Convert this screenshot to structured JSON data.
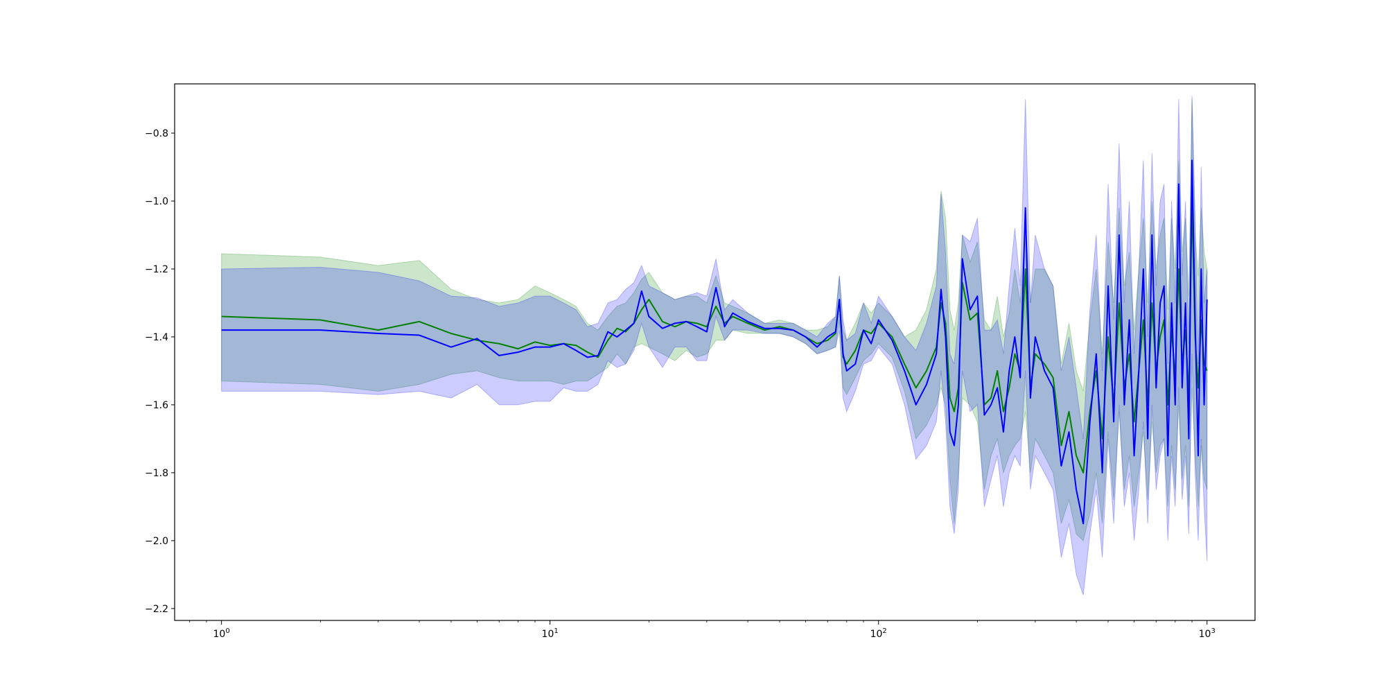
{
  "chart_data": {
    "type": "line",
    "title": "",
    "xlabel": "",
    "ylabel": "",
    "xscale": "log",
    "xlim": [
      0.72,
      1400
    ],
    "ylim": [
      -2.235,
      -0.655
    ],
    "grid": false,
    "legend": "none",
    "x_tick_labels": [
      {
        "base": "10",
        "exp": "0",
        "value": 1
      },
      {
        "base": "10",
        "exp": "1",
        "value": 10
      },
      {
        "base": "10",
        "exp": "2",
        "value": 100
      },
      {
        "base": "10",
        "exp": "3",
        "value": 1000
      }
    ],
    "y_ticks": [
      -0.8,
      -1.0,
      -1.2,
      -1.4,
      -1.6,
      -1.8,
      -2.0,
      -2.2
    ],
    "y_tick_labels": [
      "−0.8",
      "−1.0",
      "−1.2",
      "−1.4",
      "−1.6",
      "−1.8",
      "−2.0",
      "−2.2"
    ],
    "x": [
      1,
      2,
      3,
      4,
      5,
      6,
      7,
      8,
      9,
      10,
      11,
      12,
      13,
      14,
      15,
      16,
      17,
      18,
      19,
      20,
      22,
      24,
      26,
      28,
      30,
      32,
      34,
      36,
      40,
      45,
      50,
      55,
      60,
      65,
      70,
      74,
      76,
      78,
      80,
      85,
      90,
      95,
      100,
      110,
      120,
      130,
      140,
      150,
      155,
      160,
      165,
      170,
      175,
      180,
      190,
      200,
      210,
      220,
      230,
      240,
      250,
      260,
      270,
      280,
      290,
      300,
      320,
      340,
      360,
      380,
      400,
      420,
      440,
      460,
      480,
      500,
      520,
      540,
      560,
      580,
      600,
      620,
      640,
      660,
      680,
      700,
      720,
      740,
      760,
      780,
      800,
      820,
      840,
      860,
      880,
      900,
      920,
      940,
      960,
      980,
      1000
    ],
    "series": [
      {
        "color": "#008000",
        "band_color": "#008000",
        "values": [
          -1.34,
          -1.35,
          -1.38,
          -1.355,
          -1.39,
          -1.41,
          -1.42,
          -1.435,
          -1.415,
          -1.425,
          -1.42,
          -1.425,
          -1.445,
          -1.46,
          -1.41,
          -1.375,
          -1.385,
          -1.36,
          -1.32,
          -1.29,
          -1.355,
          -1.37,
          -1.355,
          -1.36,
          -1.37,
          -1.31,
          -1.36,
          -1.34,
          -1.36,
          -1.38,
          -1.37,
          -1.38,
          -1.4,
          -1.42,
          -1.41,
          -1.39,
          -1.29,
          -1.46,
          -1.48,
          -1.44,
          -1.38,
          -1.39,
          -1.36,
          -1.4,
          -1.48,
          -1.55,
          -1.5,
          -1.43,
          -1.3,
          -1.36,
          -1.58,
          -1.62,
          -1.55,
          -1.24,
          -1.35,
          -1.33,
          -1.6,
          -1.58,
          -1.5,
          -1.62,
          -1.55,
          -1.45,
          -1.5,
          -1.2,
          -1.55,
          -1.45,
          -1.48,
          -1.52,
          -1.72,
          -1.62,
          -1.75,
          -1.8,
          -1.62,
          -1.5,
          -1.7,
          -1.4,
          -1.6,
          -1.3,
          -1.55,
          -1.45,
          -1.65,
          -1.5,
          -1.35,
          -1.6,
          -1.3,
          -1.5,
          -1.4,
          -1.35,
          -1.6,
          -1.38,
          -1.52,
          -1.2,
          -1.48,
          -1.38,
          -1.58,
          -1.0,
          -1.4,
          -1.55,
          -1.35,
          -1.48,
          -1.5
        ],
        "lower": [
          -1.53,
          -1.54,
          -1.56,
          -1.54,
          -1.51,
          -1.5,
          -1.52,
          -1.53,
          -1.53,
          -1.53,
          -1.54,
          -1.53,
          -1.53,
          -1.51,
          -1.49,
          -1.45,
          -1.48,
          -1.43,
          -1.42,
          -1.43,
          -1.45,
          -1.47,
          -1.44,
          -1.46,
          -1.45,
          -1.41,
          -1.41,
          -1.38,
          -1.39,
          -1.39,
          -1.39,
          -1.4,
          -1.42,
          -1.45,
          -1.44,
          -1.43,
          -1.35,
          -1.55,
          -1.57,
          -1.52,
          -1.47,
          -1.45,
          -1.42,
          -1.46,
          -1.56,
          -1.7,
          -1.66,
          -1.6,
          -1.55,
          -1.6,
          -1.82,
          -1.95,
          -1.8,
          -1.58,
          -1.6,
          -1.65,
          -1.85,
          -1.75,
          -1.7,
          -1.8,
          -1.75,
          -1.72,
          -1.7,
          -1.62,
          -1.8,
          -1.7,
          -1.75,
          -1.8,
          -1.95,
          -1.88,
          -1.98,
          -2.0,
          -1.92,
          -1.8,
          -1.95,
          -1.68,
          -1.88,
          -1.62,
          -1.85,
          -1.75,
          -1.9,
          -1.8,
          -1.68,
          -1.88,
          -1.65,
          -1.8,
          -1.72,
          -1.7,
          -1.9,
          -1.72,
          -1.85,
          -1.6,
          -1.82,
          -1.72,
          -1.9,
          -1.55,
          -1.75,
          -1.9,
          -1.72,
          -1.82,
          -1.85
        ],
        "upper": [
          -1.155,
          -1.165,
          -1.19,
          -1.175,
          -1.26,
          -1.29,
          -1.3,
          -1.29,
          -1.25,
          -1.27,
          -1.29,
          -1.31,
          -1.36,
          -1.38,
          -1.34,
          -1.31,
          -1.3,
          -1.27,
          -1.23,
          -1.21,
          -1.27,
          -1.29,
          -1.28,
          -1.28,
          -1.3,
          -1.22,
          -1.3,
          -1.31,
          -1.33,
          -1.36,
          -1.35,
          -1.36,
          -1.38,
          -1.38,
          -1.37,
          -1.34,
          -1.22,
          -1.38,
          -1.41,
          -1.36,
          -1.3,
          -1.33,
          -1.3,
          -1.34,
          -1.4,
          -1.38,
          -1.32,
          -1.2,
          -0.97,
          -1.05,
          -1.32,
          -1.38,
          -1.3,
          -1.1,
          -1.18,
          -1.12,
          -1.35,
          -1.38,
          -1.28,
          -1.4,
          -1.33,
          -1.2,
          -1.3,
          -1.05,
          -1.3,
          -1.2,
          -1.2,
          -1.25,
          -1.48,
          -1.36,
          -1.5,
          -1.56,
          -1.35,
          -1.2,
          -1.45,
          -1.12,
          -1.3,
          -1.02,
          -1.25,
          -1.15,
          -1.38,
          -1.2,
          -1.05,
          -1.3,
          -1.0,
          -1.2,
          -1.1,
          -1.05,
          -1.32,
          -1.05,
          -1.2,
          -0.88,
          -1.15,
          -1.05,
          -1.28,
          -0.7,
          -1.1,
          -1.22,
          -1.02,
          -1.15,
          -1.2
        ]
      },
      {
        "color": "#0000ff",
        "band_color": "#0000ff",
        "values": [
          -1.38,
          -1.38,
          -1.39,
          -1.395,
          -1.43,
          -1.405,
          -1.455,
          -1.445,
          -1.43,
          -1.43,
          -1.42,
          -1.44,
          -1.46,
          -1.455,
          -1.385,
          -1.4,
          -1.38,
          -1.36,
          -1.265,
          -1.34,
          -1.375,
          -1.36,
          -1.355,
          -1.37,
          -1.385,
          -1.255,
          -1.37,
          -1.33,
          -1.355,
          -1.375,
          -1.375,
          -1.38,
          -1.4,
          -1.43,
          -1.4,
          -1.385,
          -1.29,
          -1.45,
          -1.5,
          -1.48,
          -1.38,
          -1.42,
          -1.35,
          -1.41,
          -1.5,
          -1.6,
          -1.54,
          -1.45,
          -1.26,
          -1.4,
          -1.68,
          -1.72,
          -1.6,
          -1.17,
          -1.32,
          -1.28,
          -1.63,
          -1.6,
          -1.55,
          -1.68,
          -1.5,
          -1.4,
          -1.52,
          -1.02,
          -1.58,
          -1.4,
          -1.5,
          -1.55,
          -1.78,
          -1.68,
          -1.85,
          -1.95,
          -1.65,
          -1.45,
          -1.8,
          -1.25,
          -1.65,
          -1.1,
          -1.6,
          -1.35,
          -1.75,
          -1.5,
          -1.2,
          -1.7,
          -1.1,
          -1.55,
          -1.3,
          -1.25,
          -1.75,
          -1.3,
          -1.6,
          -0.95,
          -1.55,
          -1.3,
          -1.7,
          -0.88,
          -1.35,
          -1.75,
          -1.2,
          -1.6,
          -1.29
        ],
        "lower": [
          -1.56,
          -1.56,
          -1.57,
          -1.56,
          -1.58,
          -1.54,
          -1.6,
          -1.6,
          -1.59,
          -1.59,
          -1.55,
          -1.56,
          -1.56,
          -1.54,
          -1.47,
          -1.49,
          -1.48,
          -1.44,
          -1.36,
          -1.43,
          -1.49,
          -1.43,
          -1.43,
          -1.47,
          -1.47,
          -1.34,
          -1.41,
          -1.38,
          -1.38,
          -1.39,
          -1.39,
          -1.4,
          -1.42,
          -1.45,
          -1.44,
          -1.43,
          -1.38,
          -1.58,
          -1.62,
          -1.56,
          -1.48,
          -1.47,
          -1.43,
          -1.48,
          -1.6,
          -1.76,
          -1.72,
          -1.65,
          -1.5,
          -1.65,
          -1.9,
          -1.98,
          -1.85,
          -1.5,
          -1.62,
          -1.6,
          -1.9,
          -1.82,
          -1.75,
          -1.9,
          -1.8,
          -1.75,
          -1.78,
          -1.5,
          -1.85,
          -1.75,
          -1.8,
          -1.85,
          -2.05,
          -1.95,
          -2.1,
          -2.16,
          -1.98,
          -1.85,
          -2.05,
          -1.7,
          -1.95,
          -1.6,
          -1.9,
          -1.8,
          -2.0,
          -1.85,
          -1.65,
          -1.95,
          -1.6,
          -1.85,
          -1.75,
          -1.7,
          -2.0,
          -1.75,
          -1.9,
          -1.55,
          -1.88,
          -1.75,
          -1.98,
          -1.45,
          -1.8,
          -2.0,
          -1.7,
          -1.9,
          -2.06
        ],
        "upper": [
          -1.2,
          -1.195,
          -1.21,
          -1.235,
          -1.28,
          -1.285,
          -1.31,
          -1.3,
          -1.28,
          -1.28,
          -1.3,
          -1.32,
          -1.37,
          -1.36,
          -1.3,
          -1.29,
          -1.26,
          -1.24,
          -1.19,
          -1.25,
          -1.27,
          -1.29,
          -1.28,
          -1.27,
          -1.28,
          -1.17,
          -1.32,
          -1.29,
          -1.33,
          -1.36,
          -1.36,
          -1.36,
          -1.38,
          -1.4,
          -1.36,
          -1.34,
          -1.22,
          -1.35,
          -1.41,
          -1.39,
          -1.3,
          -1.36,
          -1.28,
          -1.34,
          -1.4,
          -1.44,
          -1.36,
          -1.25,
          -0.98,
          -1.15,
          -1.45,
          -1.48,
          -1.35,
          -1.1,
          -1.12,
          -1.05,
          -1.38,
          -1.38,
          -1.35,
          -1.45,
          -1.25,
          -1.08,
          -1.25,
          -0.7,
          -1.3,
          -1.1,
          -1.2,
          -1.25,
          -1.5,
          -1.4,
          -1.55,
          -1.7,
          -1.32,
          -1.1,
          -1.5,
          -0.95,
          -1.35,
          -0.83,
          -1.3,
          -1.0,
          -1.45,
          -1.2,
          -0.88,
          -1.4,
          -0.86,
          -1.25,
          -1.0,
          -0.95,
          -1.48,
          -1.0,
          -1.3,
          -0.7,
          -1.22,
          -1.0,
          -1.42,
          -0.69,
          -1.05,
          -1.48,
          -0.9,
          -1.3,
          -1.2
        ]
      }
    ]
  }
}
